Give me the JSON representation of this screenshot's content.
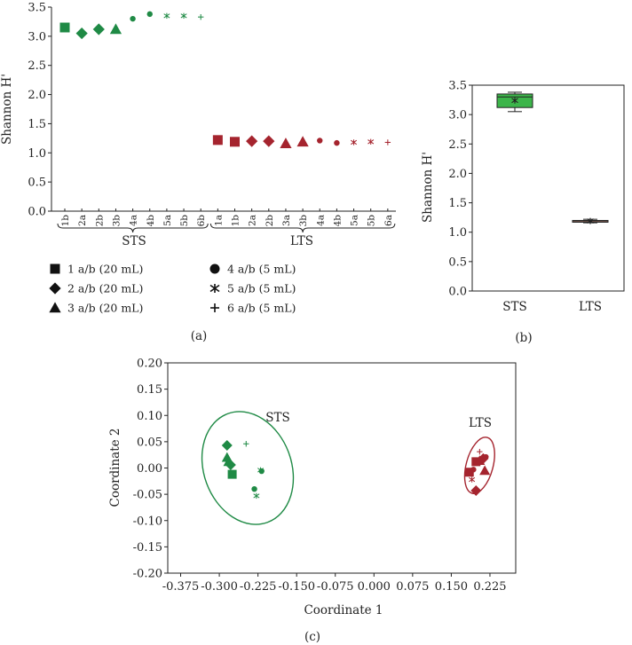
{
  "colors": {
    "sts": "#1f8a45",
    "lts": "#a5242e",
    "box_sts": "#3cb54a",
    "box_lts": "#e8a08a",
    "axis": "#222222"
  },
  "chart_data": [
    {
      "id": "a",
      "type": "scatter",
      "panel_label": "(a)",
      "ylabel": "Shannon H'",
      "ylim": [
        0,
        3.5
      ],
      "yticks": [
        "0.0",
        "0.5",
        "1.0",
        "1.5",
        "2.0",
        "2.5",
        "3.0",
        "3.5"
      ],
      "groups": [
        {
          "name": "STS",
          "color_key": "sts",
          "points": [
            {
              "label": "1b",
              "value": 3.15,
              "marker": "square",
              "size": "big"
            },
            {
              "label": "2a",
              "value": 3.05,
              "marker": "diamond",
              "size": "big"
            },
            {
              "label": "2b",
              "value": 3.12,
              "marker": "diamond",
              "size": "big"
            },
            {
              "label": "3b",
              "value": 3.12,
              "marker": "triangle",
              "size": "big"
            },
            {
              "label": "4a",
              "value": 3.3,
              "marker": "circle",
              "size": "small"
            },
            {
              "label": "4b",
              "value": 3.38,
              "marker": "circle",
              "size": "small"
            },
            {
              "label": "5a",
              "value": 3.35,
              "marker": "star",
              "size": "small"
            },
            {
              "label": "5b",
              "value": 3.35,
              "marker": "star",
              "size": "small"
            },
            {
              "label": "6b",
              "value": 3.33,
              "marker": "plus",
              "size": "small"
            }
          ]
        },
        {
          "name": "LTS",
          "color_key": "lts",
          "points": [
            {
              "label": "1a",
              "value": 1.22,
              "marker": "square",
              "size": "big"
            },
            {
              "label": "1b",
              "value": 1.19,
              "marker": "square",
              "size": "big"
            },
            {
              "label": "2a",
              "value": 1.2,
              "marker": "diamond",
              "size": "big"
            },
            {
              "label": "2b",
              "value": 1.2,
              "marker": "diamond",
              "size": "big"
            },
            {
              "label": "3a",
              "value": 1.16,
              "marker": "triangle",
              "size": "big"
            },
            {
              "label": "3b",
              "value": 1.19,
              "marker": "triangle",
              "size": "big"
            },
            {
              "label": "4a",
              "value": 1.21,
              "marker": "circle",
              "size": "small"
            },
            {
              "label": "4b",
              "value": 1.17,
              "marker": "circle",
              "size": "small"
            },
            {
              "label": "5a",
              "value": 1.18,
              "marker": "star",
              "size": "small"
            },
            {
              "label": "5b",
              "value": 1.19,
              "marker": "star",
              "size": "small"
            },
            {
              "label": "6a",
              "value": 1.18,
              "marker": "plus",
              "size": "small"
            }
          ]
        }
      ],
      "legend": [
        {
          "marker": "square",
          "text": "1 a/b (20 mL)"
        },
        {
          "marker": "diamond",
          "text": "2 a/b (20 mL)"
        },
        {
          "marker": "triangle",
          "text": "3 a/b (20 mL)"
        },
        {
          "marker": "circle",
          "text": "4 a/b (5 mL)"
        },
        {
          "marker": "star",
          "text": "5 a/b (5 mL)"
        },
        {
          "marker": "plus",
          "text": "6 a/b (5 mL)"
        }
      ]
    },
    {
      "id": "b",
      "type": "box",
      "panel_label": "(b)",
      "ylabel": "Shannon H'",
      "ylim": [
        0,
        3.5
      ],
      "yticks": [
        "0.0",
        "0.5",
        "1.0",
        "1.5",
        "2.0",
        "2.5",
        "3.0",
        "3.5"
      ],
      "categories": [
        "STS",
        "LTS"
      ],
      "boxes": [
        {
          "name": "STS",
          "min": 3.05,
          "q1": 3.12,
          "median": 3.3,
          "q3": 3.35,
          "max": 3.38,
          "mean": 3.24,
          "color_key": "box_sts"
        },
        {
          "name": "LTS",
          "min": 1.16,
          "q1": 1.175,
          "median": 1.19,
          "q3": 1.2,
          "max": 1.22,
          "mean": 1.19,
          "color_key": "box_lts"
        }
      ]
    },
    {
      "id": "c",
      "type": "scatter",
      "panel_label": "(c)",
      "xlabel": "Coordinate 1",
      "ylabel": "Coordinate 2",
      "xlim": [
        -0.4,
        0.275
      ],
      "ylim": [
        -0.2,
        0.2
      ],
      "xticks": [
        "-0.375",
        "-0.300",
        "-0.225",
        "-0.150",
        "-0.075",
        "0.000",
        "0.075",
        "0.150",
        "0.225"
      ],
      "yticks": [
        "-0.20",
        "-0.15",
        "-0.10",
        "-0.05",
        "0.00",
        "0.05",
        "0.10",
        "0.15",
        "0.20"
      ],
      "ellipse_labels": [
        "STS",
        "LTS"
      ],
      "ellipses": [
        {
          "name": "STS",
          "cx": -0.245,
          "cy": 0.0,
          "rx": 0.085,
          "ry": 0.11,
          "angle_deg": -20,
          "color_key": "sts"
        },
        {
          "name": "LTS",
          "cx": 0.205,
          "cy": 0.005,
          "rx": 0.026,
          "ry": 0.055,
          "angle_deg": 15,
          "color_key": "lts"
        }
      ],
      "series": [
        {
          "name": "STS",
          "color_key": "sts",
          "points": [
            {
              "x": -0.285,
              "y": 0.043,
              "marker": "diamond"
            },
            {
              "x": -0.285,
              "y": 0.02,
              "marker": "triangle"
            },
            {
              "x": -0.282,
              "y": 0.012,
              "marker": "triangle"
            },
            {
              "x": -0.278,
              "y": 0.006,
              "marker": "diamond"
            },
            {
              "x": -0.275,
              "y": -0.012,
              "marker": "square"
            },
            {
              "x": -0.248,
              "y": 0.046,
              "marker": "plus"
            },
            {
              "x": -0.22,
              "y": -0.004,
              "marker": "star"
            },
            {
              "x": -0.218,
              "y": -0.006,
              "marker": "circle"
            },
            {
              "x": -0.232,
              "y": -0.04,
              "marker": "circle"
            },
            {
              "x": -0.228,
              "y": -0.053,
              "marker": "star"
            }
          ]
        },
        {
          "name": "LTS",
          "color_key": "lts",
          "points": [
            {
              "x": 0.185,
              "y": -0.008,
              "marker": "square"
            },
            {
              "x": 0.198,
              "y": 0.012,
              "marker": "square"
            },
            {
              "x": 0.205,
              "y": 0.014,
              "marker": "triangle"
            },
            {
              "x": 0.212,
              "y": 0.018,
              "marker": "diamond"
            },
            {
              "x": 0.205,
              "y": 0.031,
              "marker": "plus"
            },
            {
              "x": 0.217,
              "y": 0.021,
              "marker": "circle"
            },
            {
              "x": 0.215,
              "y": -0.005,
              "marker": "triangle"
            },
            {
              "x": 0.193,
              "y": -0.003,
              "marker": "circle"
            },
            {
              "x": 0.19,
              "y": -0.022,
              "marker": "star"
            },
            {
              "x": 0.198,
              "y": -0.043,
              "marker": "diamond"
            }
          ]
        }
      ]
    }
  ]
}
